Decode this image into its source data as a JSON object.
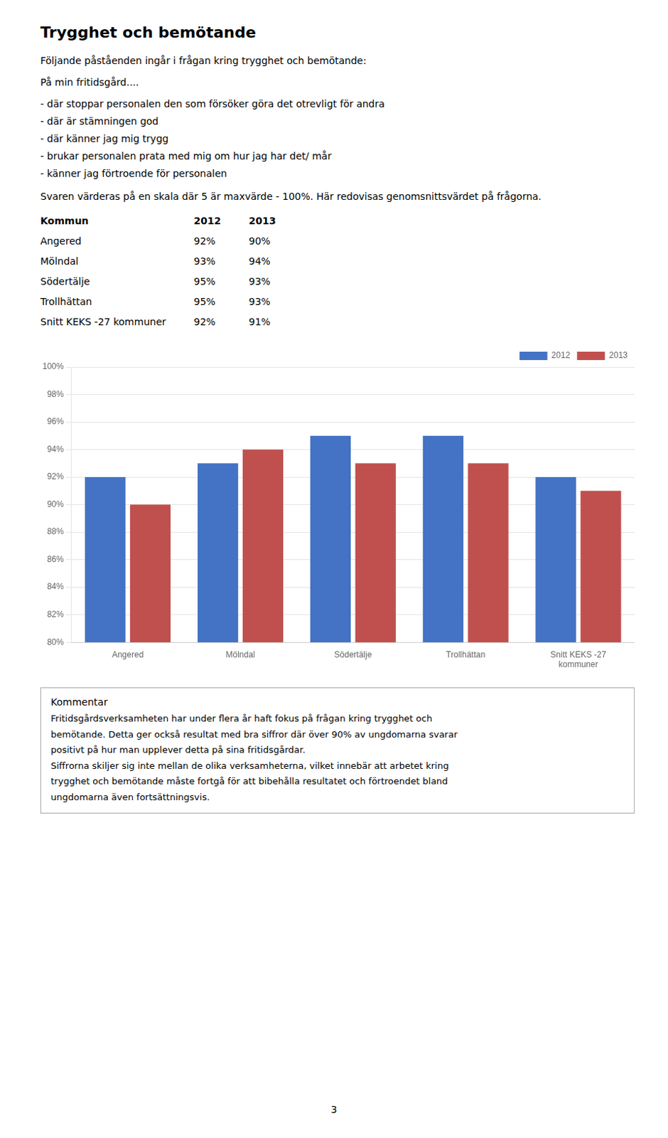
{
  "title": "Trygghet och bemötande",
  "intro": [
    "Följande påståenden ingår i frågan kring trygghet och bemötande:",
    "På min fritidsgård...."
  ],
  "bullets": [
    "- där stoppar personalen den som försöker göra det otrevligt för andra",
    "- där är stämningen god",
    "- där känner jag mig trygg",
    "- brukar personalen prata med mig om hur jag har det/ mår",
    "- känner jag förtroende för personalen"
  ],
  "intro_after": "Svaren värderas på en skala där 5 är maxvärde - 100%. Här redovisas genomsnittsvärdet på frågorna.",
  "table": {
    "header": [
      "Kommun",
      "2012",
      "2013"
    ],
    "rows": [
      [
        "Angered",
        "92%",
        "90%"
      ],
      [
        "Mölndal",
        "93%",
        "94%"
      ],
      [
        "Södertälje",
        "95%",
        "93%"
      ],
      [
        "Trollhättan",
        "95%",
        "93%"
      ],
      [
        "Snitt KEKS -27 kommuner",
        "92%",
        "91%"
      ]
    ]
  },
  "chart_data": {
    "type": "bar",
    "categories": [
      "Angered",
      "Mölndal",
      "Södertälje",
      "Trollhättan",
      "Snitt KEKS -27\nkommuner"
    ],
    "series": [
      {
        "name": "2012",
        "color": "#4472C4",
        "values": [
          0.92,
          0.93,
          0.95,
          0.95,
          0.92
        ]
      },
      {
        "name": "2013",
        "color": "#C0504D",
        "values": [
          0.9,
          0.94,
          0.93,
          0.93,
          0.91
        ]
      }
    ],
    "ylim": [
      0.8,
      1.0
    ],
    "yticks": [
      {
        "value": 0.8,
        "label": "80%"
      },
      {
        "value": 0.82,
        "label": "82%"
      },
      {
        "value": 0.84,
        "label": "84%"
      },
      {
        "value": 0.86,
        "label": "86%"
      },
      {
        "value": 0.88,
        "label": "88%"
      },
      {
        "value": 0.9,
        "label": "90%"
      },
      {
        "value": 0.92,
        "label": "92%"
      },
      {
        "value": 0.94,
        "label": "94%"
      },
      {
        "value": 0.96,
        "label": "96%"
      },
      {
        "value": 0.98,
        "label": "98%"
      },
      {
        "value": 1.0,
        "label": "100%"
      }
    ],
    "grid": true,
    "legend": "upper right"
  },
  "comment_title": "Kommentar",
  "comment_lines": [
    "Fritidsgårdsverksamheten har under flera år haft fokus på frågan kring trygghet och",
    "bemötande. Detta ger också resultat med bra siffror där över 90% av ungdomarna svarar",
    "positivt på hur man upplever detta på sina fritidsgårdar.",
    "Siffrorna skiljer sig inte mellan de olika verksamheterna, vilket innebär att arbetet kring",
    "trygghet och bemötande måste fortgå för att bibehålla resultatet och förtroendet bland",
    "ungdomarna även fortsättningsvis."
  ],
  "page_number": "3"
}
